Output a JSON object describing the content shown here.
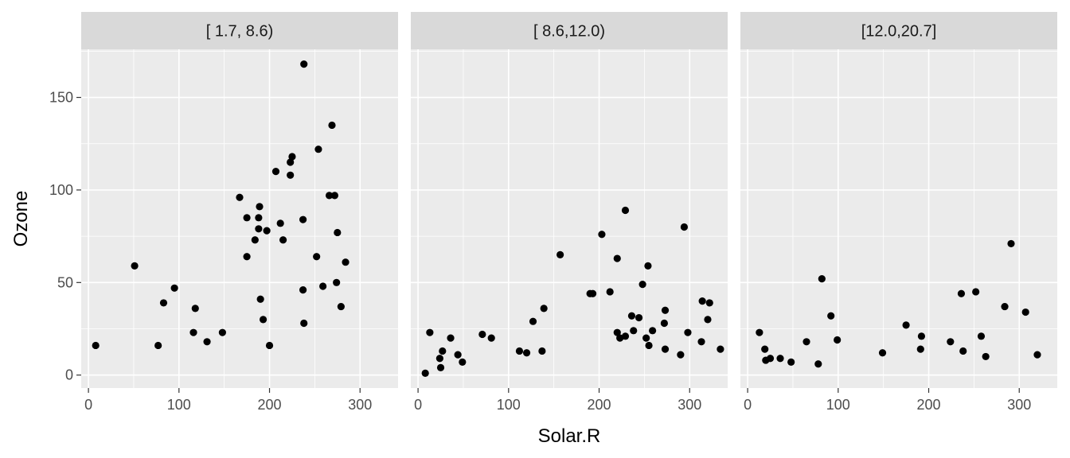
{
  "chart_data": {
    "type": "scatter",
    "xlabel": "Solar.R",
    "ylabel": "Ozone",
    "xlim": [
      -8,
      342
    ],
    "ylim": [
      -7,
      176
    ],
    "x_ticks": [
      0,
      100,
      200,
      300
    ],
    "y_ticks": [
      0,
      50,
      100,
      150
    ],
    "grid": true,
    "point_color": "#000000",
    "panel_background": "#ebebeb",
    "strip_background": "#d9d9d9",
    "panels": [
      {
        "label": "[ 1.7, 8.6)",
        "points": [
          [
            8,
            16
          ],
          [
            51,
            59
          ],
          [
            77,
            16
          ],
          [
            83,
            39
          ],
          [
            95,
            47
          ],
          [
            116,
            23
          ],
          [
            118,
            36
          ],
          [
            131,
            18
          ],
          [
            148,
            23
          ],
          [
            167,
            96
          ],
          [
            175,
            64
          ],
          [
            175,
            85
          ],
          [
            184,
            73
          ],
          [
            188,
            79
          ],
          [
            188,
            85
          ],
          [
            189,
            91
          ],
          [
            190,
            41
          ],
          [
            193,
            30
          ],
          [
            197,
            78
          ],
          [
            200,
            16
          ],
          [
            207,
            110
          ],
          [
            212,
            82
          ],
          [
            215,
            73
          ],
          [
            223,
            108
          ],
          [
            223,
            115
          ],
          [
            225,
            118
          ],
          [
            237,
            46
          ],
          [
            237,
            84
          ],
          [
            238,
            28
          ],
          [
            238,
            168
          ],
          [
            252,
            64
          ],
          [
            254,
            122
          ],
          [
            259,
            48
          ],
          [
            266,
            97
          ],
          [
            269,
            135
          ],
          [
            272,
            97
          ],
          [
            274,
            50
          ],
          [
            275,
            77
          ],
          [
            279,
            37
          ],
          [
            284,
            61
          ]
        ]
      },
      {
        "label": "[ 8.6,12.0)",
        "points": [
          [
            8,
            1
          ],
          [
            13,
            23
          ],
          [
            24,
            9
          ],
          [
            25,
            4
          ],
          [
            27,
            13
          ],
          [
            36,
            20
          ],
          [
            44,
            11
          ],
          [
            49,
            7
          ],
          [
            71,
            22
          ],
          [
            81,
            20
          ],
          [
            112,
            13
          ],
          [
            120,
            12
          ],
          [
            127,
            29
          ],
          [
            137,
            13
          ],
          [
            139,
            36
          ],
          [
            157,
            65
          ],
          [
            190,
            44
          ],
          [
            193,
            44
          ],
          [
            203,
            76
          ],
          [
            212,
            45
          ],
          [
            220,
            23
          ],
          [
            220,
            63
          ],
          [
            223,
            20
          ],
          [
            229,
            89
          ],
          [
            229,
            21
          ],
          [
            236,
            32
          ],
          [
            238,
            24
          ],
          [
            244,
            31
          ],
          [
            248,
            49
          ],
          [
            252,
            20
          ],
          [
            254,
            59
          ],
          [
            255,
            16
          ],
          [
            259,
            24
          ],
          [
            272,
            28
          ],
          [
            273,
            35
          ],
          [
            273,
            14
          ],
          [
            290,
            11
          ],
          [
            294,
            80
          ],
          [
            298,
            23
          ],
          [
            313,
            18
          ],
          [
            314,
            40
          ],
          [
            320,
            30
          ],
          [
            322,
            39
          ],
          [
            334,
            14
          ]
        ]
      },
      {
        "label": "[12.0,20.7]",
        "points": [
          [
            13,
            23
          ],
          [
            19,
            14
          ],
          [
            20,
            8
          ],
          [
            25,
            9
          ],
          [
            36,
            9
          ],
          [
            48,
            7
          ],
          [
            65,
            18
          ],
          [
            78,
            6
          ],
          [
            82,
            52
          ],
          [
            92,
            32
          ],
          [
            99,
            19
          ],
          [
            149,
            12
          ],
          [
            175,
            27
          ],
          [
            191,
            14
          ],
          [
            192,
            21
          ],
          [
            224,
            18
          ],
          [
            236,
            44
          ],
          [
            238,
            13
          ],
          [
            252,
            45
          ],
          [
            258,
            21
          ],
          [
            263,
            10
          ],
          [
            284,
            37
          ],
          [
            291,
            71
          ],
          [
            307,
            34
          ],
          [
            320,
            11
          ]
        ]
      }
    ]
  }
}
